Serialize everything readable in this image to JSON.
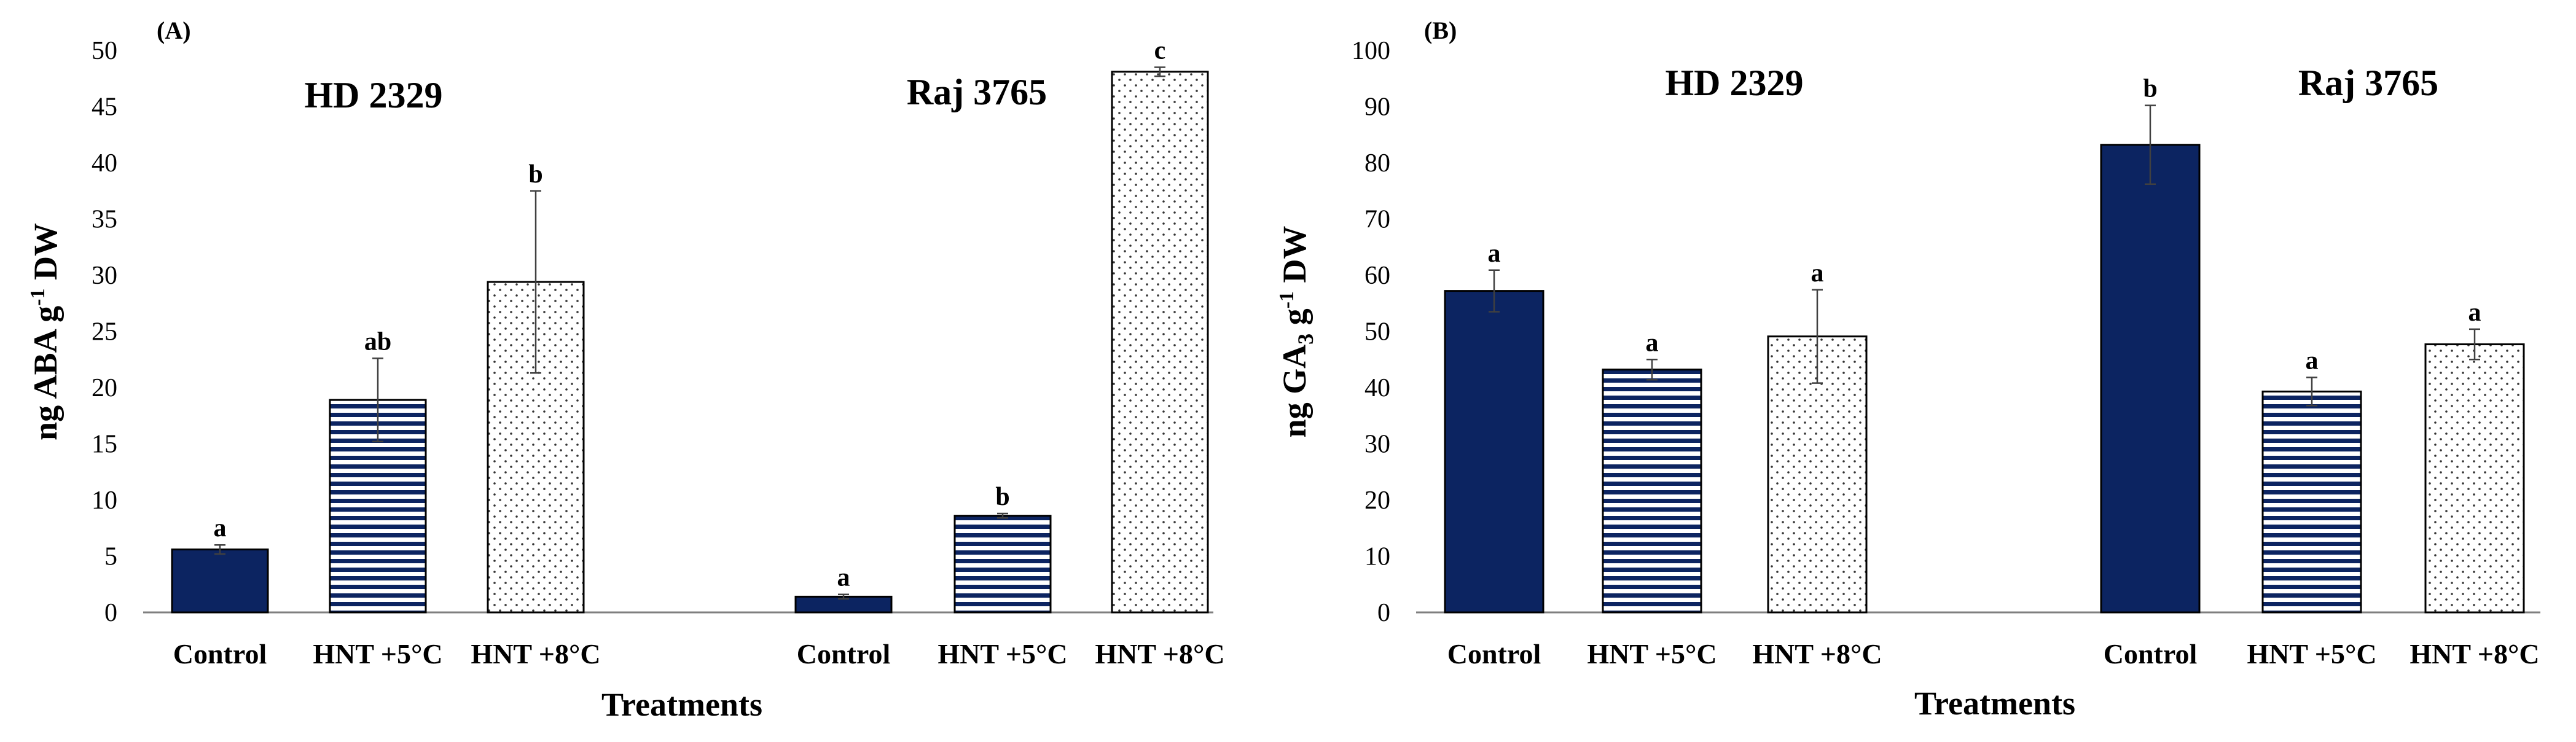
{
  "colors": {
    "navy": "#0c2461",
    "axis": "#7f7f7f",
    "err": "#404040"
  },
  "chart_data": [
    {
      "type": "bar",
      "panel_label": "(A)",
      "ylabel_parts": {
        "pre": "ng ABA g",
        "sup": "-1",
        "post": " DW"
      },
      "xlabel": "Treatments",
      "ylim": [
        0,
        50
      ],
      "yticks": [
        "0",
        "5",
        "10",
        "15",
        "20",
        "25",
        "30",
        "35",
        "40",
        "45",
        "50"
      ],
      "groups": [
        {
          "name": "HD 2329",
          "bars": [
            {
              "label": "Control",
              "pattern": "solid",
              "value": 5.6,
              "error": 0.4,
              "sig": "a"
            },
            {
              "label": "HNT +5°C",
              "pattern": "hstripe",
              "value": 18.9,
              "error": 3.7,
              "sig": "ab"
            },
            {
              "label": "HNT +8°C",
              "pattern": "dots",
              "value": 29.4,
              "error": 8.1,
              "sig": "b"
            }
          ]
        },
        {
          "name": "Raj 3765",
          "bars": [
            {
              "label": "Control",
              "pattern": "solid",
              "value": 1.4,
              "error": 0.2,
              "sig": "a"
            },
            {
              "label": "HNT +5°C",
              "pattern": "hstripe",
              "value": 8.6,
              "error": 0.2,
              "sig": "b"
            },
            {
              "label": "HNT +8°C",
              "pattern": "dots",
              "value": 48.1,
              "error": 0.4,
              "sig": "c"
            }
          ]
        }
      ]
    },
    {
      "type": "bar",
      "panel_label": "(B)",
      "ylabel_parts": {
        "pre": "ng GA",
        "sub": "3",
        "mid": " g",
        "sup": "-1",
        "post": " DW"
      },
      "xlabel": "Treatments",
      "ylim": [
        0,
        100
      ],
      "yticks": [
        "0",
        "10",
        "20",
        "30",
        "40",
        "50",
        "60",
        "70",
        "80",
        "90",
        "100"
      ],
      "groups": [
        {
          "name": "HD 2329",
          "bars": [
            {
              "label": "Control",
              "pattern": "solid",
              "value": 57.2,
              "error": 3.7,
              "sig": "a"
            },
            {
              "label": "HNT +5°C",
              "pattern": "hstripe",
              "value": 43.2,
              "error": 1.8,
              "sig": "a"
            },
            {
              "label": "HNT +8°C",
              "pattern": "dots",
              "value": 49.1,
              "error": 8.3,
              "sig": "a"
            }
          ]
        },
        {
          "name": "Raj 3765",
          "bars": [
            {
              "label": "Control",
              "pattern": "solid",
              "value": 83.2,
              "error": 7.0,
              "sig": "b"
            },
            {
              "label": "HNT +5°C",
              "pattern": "hstripe",
              "value": 39.3,
              "error": 2.5,
              "sig": "a"
            },
            {
              "label": "HNT +8°C",
              "pattern": "dots",
              "value": 47.7,
              "error": 2.7,
              "sig": "a"
            }
          ]
        }
      ]
    }
  ]
}
